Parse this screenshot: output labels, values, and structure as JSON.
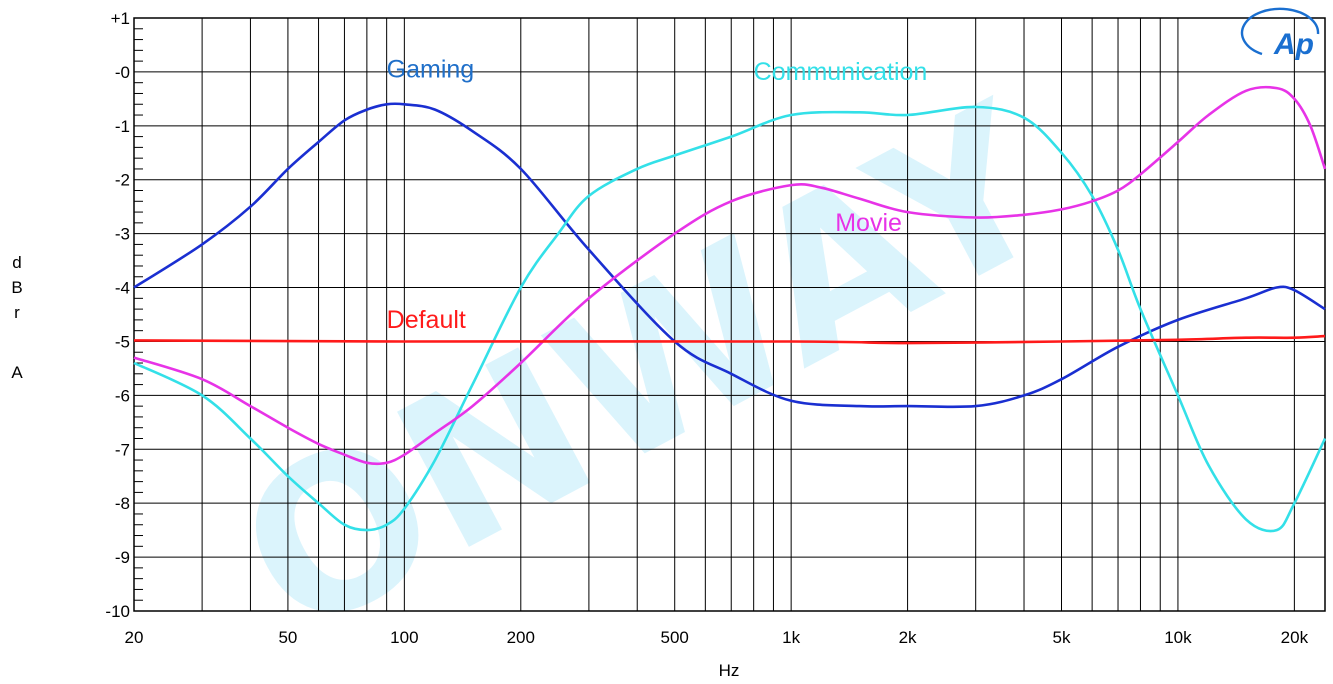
{
  "chart_data": {
    "type": "line",
    "xlabel": "Hz",
    "ylabel": "dBrA",
    "xscale": "log",
    "xlim": [
      20,
      24000
    ],
    "ylim": [
      -10,
      1
    ],
    "grid": true,
    "legend": "inline labels",
    "x_ticks": [
      20,
      50,
      100,
      200,
      500,
      1000,
      2000,
      5000,
      10000,
      20000
    ],
    "x_tick_labels": [
      "20",
      "50",
      "100",
      "200",
      "500",
      "1k",
      "2k",
      "5k",
      "10k",
      "20k"
    ],
    "y_ticks": [
      1,
      0,
      -1,
      -2,
      -3,
      -4,
      -5,
      -6,
      -7,
      -8,
      -9,
      -10
    ],
    "y_tick_labels": [
      "+1",
      "-0",
      "-1",
      "-2",
      "-3",
      "-4",
      "-5",
      "-6",
      "-7",
      "-8",
      "-9",
      "-10"
    ],
    "logo_text": "Ap",
    "watermark_text": "ONWAY",
    "series": [
      {
        "name": "Gaming",
        "color": "#1a2fd1",
        "label_color": "#1f6fc9",
        "label_at": [
          90,
          -0.1
        ],
        "x": [
          20,
          30,
          40,
          50,
          60,
          70,
          80,
          90,
          100,
          120,
          150,
          200,
          300,
          500,
          700,
          1000,
          1500,
          2000,
          3000,
          4000,
          5000,
          7000,
          10000,
          15000,
          18000,
          20000,
          24000
        ],
        "y": [
          -4.0,
          -3.2,
          -2.5,
          -1.8,
          -1.3,
          -0.9,
          -0.7,
          -0.6,
          -0.6,
          -0.7,
          -1.1,
          -1.8,
          -3.3,
          -5.0,
          -5.6,
          -6.1,
          -6.2,
          -6.2,
          -6.2,
          -6.0,
          -5.7,
          -5.1,
          -4.6,
          -4.2,
          -4.0,
          -4.05,
          -4.4
        ]
      },
      {
        "name": "Communication",
        "color": "#33e0e8",
        "label_color": "#33e0e8",
        "label_at": [
          800,
          -0.15
        ],
        "x": [
          20,
          30,
          40,
          50,
          60,
          70,
          80,
          90,
          100,
          120,
          150,
          200,
          250,
          300,
          400,
          500,
          700,
          1000,
          1500,
          2000,
          3000,
          4000,
          5000,
          6000,
          7000,
          8000,
          10000,
          12000,
          15000,
          18000,
          20000,
          24000
        ],
        "y": [
          -5.4,
          -6.0,
          -6.8,
          -7.5,
          -8.0,
          -8.4,
          -8.5,
          -8.4,
          -8.1,
          -7.2,
          -5.8,
          -4.0,
          -3.0,
          -2.3,
          -1.8,
          -1.55,
          -1.2,
          -0.8,
          -0.75,
          -0.8,
          -0.65,
          -0.85,
          -1.5,
          -2.3,
          -3.3,
          -4.4,
          -6.0,
          -7.3,
          -8.3,
          -8.5,
          -8.0,
          -6.8
        ]
      },
      {
        "name": "Movie",
        "color": "#e733e7",
        "label_color": "#e733e7",
        "label_at": [
          1300,
          -2.95
        ],
        "x": [
          20,
          30,
          40,
          50,
          60,
          70,
          80,
          90,
          100,
          120,
          150,
          200,
          300,
          500,
          700,
          1000,
          1200,
          1500,
          2000,
          3000,
          4000,
          5000,
          6000,
          7000,
          8000,
          10000,
          12000,
          15000,
          18000,
          20000,
          22000,
          24000
        ],
        "y": [
          -5.3,
          -5.7,
          -6.2,
          -6.6,
          -6.9,
          -7.1,
          -7.25,
          -7.25,
          -7.1,
          -6.7,
          -6.2,
          -5.4,
          -4.2,
          -3.0,
          -2.4,
          -2.1,
          -2.15,
          -2.35,
          -2.6,
          -2.7,
          -2.65,
          -2.55,
          -2.4,
          -2.2,
          -1.9,
          -1.3,
          -0.8,
          -0.35,
          -0.3,
          -0.5,
          -1.0,
          -1.8
        ]
      },
      {
        "name": "Default",
        "color": "#ff1a1a",
        "label_color": "#ff1a1a",
        "label_at": [
          90,
          -4.75
        ],
        "x": [
          20,
          100,
          1000,
          2000,
          5000,
          10000,
          15000,
          20000,
          24000
        ],
        "y": [
          -4.98,
          -5.0,
          -5.0,
          -5.03,
          -5.0,
          -4.97,
          -4.93,
          -4.93,
          -4.9
        ]
      }
    ]
  }
}
